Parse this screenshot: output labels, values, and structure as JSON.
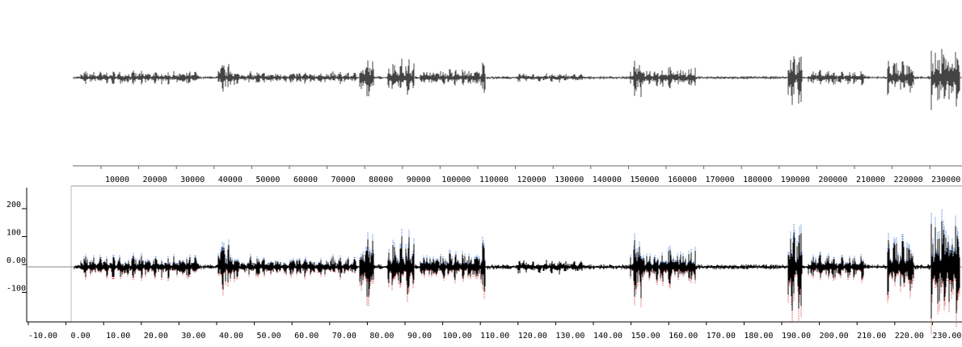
{
  "top_axis": {
    "ticks": [
      "10000",
      "20000",
      "30000",
      "40000",
      "50000",
      "60000",
      "70000",
      "80000",
      "90000",
      "100000",
      "110000",
      "120000",
      "130000",
      "140000",
      "150000",
      "160000",
      "170000",
      "180000",
      "190000",
      "200000",
      "210000",
      "220000",
      "230000"
    ]
  },
  "bottom_axis": {
    "xticks": [
      "-10.00",
      "0.00",
      "10.00",
      "20.00",
      "30.00",
      "40.00",
      "50.00",
      "60.00",
      "70.00",
      "80.00",
      "90.00",
      "100.00",
      "110.00",
      "120.00",
      "130.00",
      "140.00",
      "150.00",
      "160.00",
      "170.00",
      "180.00",
      "190.00",
      "200.00",
      "210.00",
      "220.00",
      "230.00"
    ],
    "yticks": [
      "200",
      "100",
      "0.00",
      "-100"
    ]
  }
}
